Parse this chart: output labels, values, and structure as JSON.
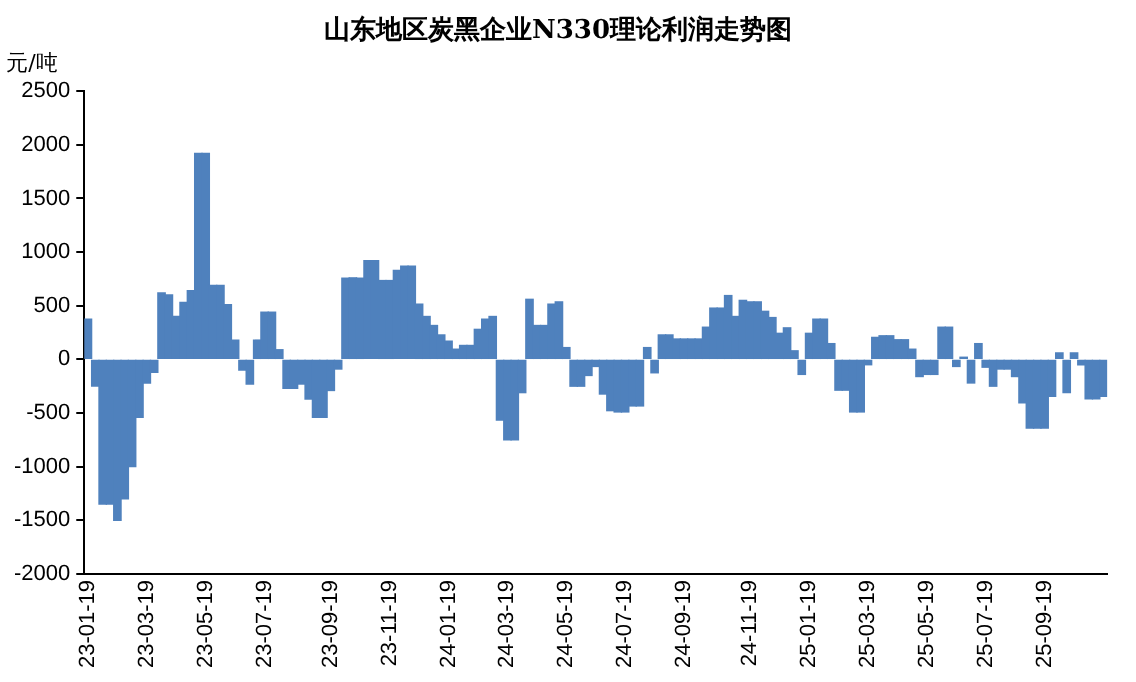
{
  "chart_data": {
    "type": "bar",
    "title": "山东地区炭黑企业N330理论利润走势图",
    "ylabel": "元/吨",
    "color": "#4f81bd",
    "categories": [
      "23-01-19",
      null,
      null,
      null,
      null,
      null,
      null,
      null,
      "23-03-19",
      null,
      null,
      null,
      null,
      null,
      null,
      null,
      "23-05-19",
      null,
      null,
      null,
      null,
      null,
      null,
      null,
      "23-07-19",
      null,
      null,
      null,
      null,
      null,
      null,
      null,
      null,
      "23-09-19",
      null,
      null,
      null,
      null,
      null,
      null,
      null,
      "23-11-19",
      null,
      null,
      null,
      null,
      null,
      null,
      null,
      "24-01-19",
      null,
      null,
      null,
      null,
      null,
      null,
      null,
      "24-03-19",
      null,
      null,
      null,
      null,
      null,
      null,
      null,
      "24-05-19",
      null,
      null,
      null,
      null,
      null,
      null,
      null,
      "24-07-19",
      null,
      null,
      null,
      null,
      null,
      null,
      null,
      "24-09-19",
      null,
      null,
      null,
      null,
      null,
      null,
      null,
      null,
      "24-11-19",
      null,
      null,
      null,
      null,
      null,
      null,
      null,
      "25-01-19",
      null,
      null,
      null,
      null,
      null,
      null,
      null,
      "25-03-19",
      null,
      null,
      null,
      null,
      null,
      null,
      null,
      "25-05-19",
      null,
      null,
      null,
      null,
      null,
      null,
      null,
      "25-07-19",
      null,
      null,
      null,
      null,
      null,
      null,
      null,
      "25-09-19",
      null,
      null,
      null,
      null,
      null,
      null,
      null,
      null
    ],
    "values": [
      375,
      -250,
      -1350,
      -1350,
      -1500,
      -1300,
      -1000,
      -540,
      -220,
      -120,
      620,
      600,
      400,
      530,
      640,
      1920,
      1920,
      690,
      690,
      510,
      180,
      -100,
      -230,
      180,
      440,
      440,
      90,
      -270,
      -270,
      -230,
      -370,
      -540,
      -540,
      -290,
      -90,
      757,
      760,
      757,
      920,
      920,
      735,
      735,
      830,
      870,
      870,
      515,
      400,
      316,
      228,
      170,
      95,
      130,
      130,
      280,
      375,
      400,
      -566,
      -750,
      -750,
      -310,
      560,
      316,
      316,
      515,
      536,
      110,
      -250,
      -250,
      -150,
      -66,
      -323,
      -478,
      -490,
      -490,
      -434,
      -434,
      110,
      -125,
      228,
      228,
      190,
      190,
      190,
      190,
      300,
      478,
      478,
      595,
      400,
      550,
      536,
      536,
      448,
      390,
      243,
      294,
      80,
      -140,
      243,
      375,
      375,
      147,
      -287,
      -287,
      -490,
      -490,
      -50,
      205,
      220,
      220,
      183,
      183,
      95,
      -160,
      -140,
      -140,
      300,
      300,
      -66,
      20,
      -220,
      147,
      -73,
      -250,
      -90,
      -90,
      -160,
      -404,
      -640,
      -640,
      -640,
      -345,
      60,
      -310,
      60,
      -50,
      -367,
      -367,
      -345
    ],
    "ylim": [
      -2000,
      2500
    ],
    "yticks": [
      -2000,
      -1500,
      -1000,
      -500,
      0,
      500,
      1000,
      1500,
      2000,
      2500
    ],
    "grid": false,
    "legend": false
  }
}
